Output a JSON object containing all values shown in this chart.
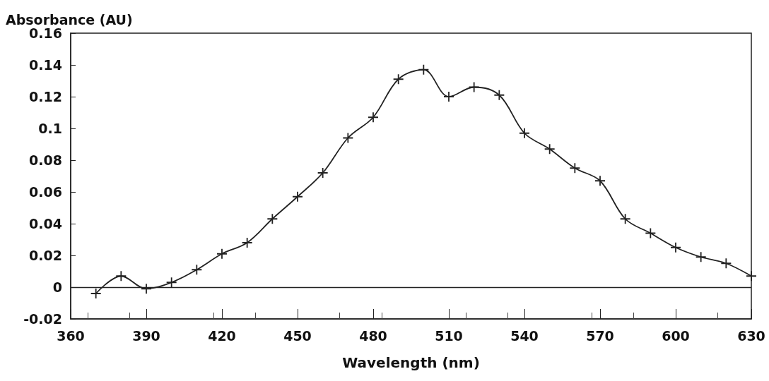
{
  "chart_data": {
    "type": "line",
    "xlabel": "Wavelength (nm)",
    "ylabel": "Absorbance (AU)",
    "x": [
      370,
      380,
      390,
      400,
      410,
      420,
      430,
      440,
      450,
      460,
      470,
      480,
      490,
      500,
      510,
      520,
      530,
      540,
      550,
      560,
      570,
      580,
      590,
      600,
      610,
      620,
      630
    ],
    "series": [
      {
        "color": "#222222",
        "values": [
          -0.004,
          0.007,
          -0.001,
          0.003,
          0.011,
          0.021,
          0.028,
          0.043,
          0.057,
          0.072,
          0.094,
          0.107,
          0.131,
          0.137,
          0.12,
          0.126,
          0.121,
          0.097,
          0.087,
          0.075,
          0.067,
          0.043,
          0.034,
          0.025,
          0.019,
          0.015,
          0.007
        ]
      }
    ],
    "xlim": [
      360,
      630
    ],
    "xticks": [
      360,
      390,
      420,
      450,
      480,
      510,
      540,
      570,
      600,
      630
    ],
    "ylim": [
      -0.02,
      0.16
    ],
    "yticks": [
      -0.02,
      0,
      0.02,
      0.04,
      0.06,
      0.08,
      0.1,
      0.12,
      0.14,
      0.16
    ],
    "ref_lines": [
      {
        "axis": "y",
        "value": 0,
        "color": "#222222"
      }
    ],
    "grid": false,
    "marker": "cross",
    "line_style": "solid"
  }
}
